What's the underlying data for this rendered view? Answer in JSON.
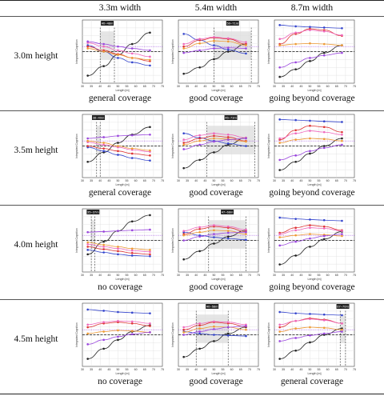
{
  "columns": [
    "3.3m width",
    "5.4m width",
    "8.7m width"
  ],
  "rows": [
    "3.0m height",
    "3.5m height",
    "4.0m height",
    "4.5m height"
  ],
  "axes": {
    "xlabel": "Length [m]",
    "ylabel": "Integrated Cognition",
    "xticks": [
      30,
      35,
      40,
      45,
      50,
      55,
      60,
      65,
      70,
      75
    ]
  },
  "colors": {
    "black": "#222222",
    "blue": "#3344cc",
    "red": "#dd3333",
    "pink": "#ee66bb",
    "orange": "#ee9933",
    "purple": "#9944dd",
    "shade": "#dcdcdc"
  },
  "chart_data": [
    {
      "type": "line",
      "row": "3.0m height",
      "col": "3.3m width",
      "caption": "general coverage",
      "range": [
        40,
        48
      ],
      "range_label": "40~48m",
      "series": [
        {
          "color": "black",
          "y": [
            0.12,
            0.27,
            0.45,
            0.62,
            0.8
          ]
        },
        {
          "color": "blue",
          "y": [
            0.6,
            0.5,
            0.4,
            0.33,
            0.28
          ]
        },
        {
          "color": "red",
          "y": [
            0.58,
            0.52,
            0.46,
            0.4,
            0.35
          ]
        },
        {
          "color": "pink",
          "y": [
            0.64,
            0.58,
            0.52,
            0.47,
            0.42
          ]
        },
        {
          "color": "orange",
          "y": [
            0.55,
            0.5,
            0.45,
            0.4,
            0.37
          ]
        },
        {
          "color": "purple",
          "y": [
            0.66,
            0.62,
            0.58,
            0.55,
            0.52
          ]
        }
      ]
    },
    {
      "type": "line",
      "row": "3.0m height",
      "col": "5.4m width",
      "caption": "good coverage",
      "range": [
        50,
        71
      ],
      "range_label": "50~71m",
      "series": [
        {
          "color": "black",
          "y": [
            0.15,
            0.25,
            0.38,
            0.5,
            0.62
          ]
        },
        {
          "color": "blue",
          "y": [
            0.78,
            0.68,
            0.6,
            0.53,
            0.47
          ]
        },
        {
          "color": "red",
          "y": [
            0.58,
            0.68,
            0.72,
            0.7,
            0.62
          ]
        },
        {
          "color": "pink",
          "y": [
            0.62,
            0.7,
            0.73,
            0.71,
            0.65
          ]
        },
        {
          "color": "orange",
          "y": [
            0.55,
            0.63,
            0.67,
            0.66,
            0.6
          ]
        },
        {
          "color": "purple",
          "y": [
            0.48,
            0.52,
            0.55,
            0.56,
            0.55
          ]
        }
      ]
    },
    {
      "type": "line",
      "row": "3.0m height",
      "col": "8.7m width",
      "caption": "going beyond coverage",
      "range": null,
      "range_label": "",
      "series": [
        {
          "color": "black",
          "y": [
            0.1,
            0.22,
            0.35,
            0.48,
            0.6
          ]
        },
        {
          "color": "blue",
          "y": [
            0.92,
            0.9,
            0.89,
            0.88,
            0.87
          ]
        },
        {
          "color": "red",
          "y": [
            0.62,
            0.78,
            0.86,
            0.84,
            0.75
          ]
        },
        {
          "color": "pink",
          "y": [
            0.7,
            0.8,
            0.84,
            0.82,
            0.76
          ]
        },
        {
          "color": "orange",
          "y": [
            0.6,
            0.62,
            0.63,
            0.62,
            0.6
          ]
        },
        {
          "color": "purple",
          "y": [
            0.25,
            0.33,
            0.4,
            0.44,
            0.48
          ]
        }
      ]
    },
    {
      "type": "line",
      "row": "3.5m height",
      "col": "3.3m width",
      "caption": "general coverage",
      "range": [
        38,
        40
      ],
      "range_label": "38~40m",
      "series": [
        {
          "color": "black",
          "y": [
            0.25,
            0.4,
            0.55,
            0.68,
            0.8
          ]
        },
        {
          "color": "blue",
          "y": [
            0.48,
            0.42,
            0.36,
            0.31,
            0.27
          ]
        },
        {
          "color": "red",
          "y": [
            0.5,
            0.46,
            0.42,
            0.38,
            0.35
          ]
        },
        {
          "color": "pink",
          "y": [
            0.56,
            0.52,
            0.48,
            0.44,
            0.41
          ]
        },
        {
          "color": "orange",
          "y": [
            0.58,
            0.55,
            0.5,
            0.46,
            0.43
          ]
        },
        {
          "color": "purple",
          "y": [
            0.62,
            0.64,
            0.66,
            0.67,
            0.68
          ]
        }
      ]
    },
    {
      "type": "line",
      "row": "3.5m height",
      "col": "5.4m width",
      "caption": "good coverage",
      "range": [
        46,
        73
      ],
      "range_label": "46~73m",
      "series": [
        {
          "color": "black",
          "y": [
            0.15,
            0.28,
            0.4,
            0.52,
            0.63
          ]
        },
        {
          "color": "blue",
          "y": [
            0.7,
            0.63,
            0.58,
            0.54,
            0.5
          ]
        },
        {
          "color": "red",
          "y": [
            0.55,
            0.62,
            0.66,
            0.64,
            0.58
          ]
        },
        {
          "color": "pink",
          "y": [
            0.6,
            0.67,
            0.7,
            0.68,
            0.63
          ]
        },
        {
          "color": "orange",
          "y": [
            0.52,
            0.58,
            0.62,
            0.61,
            0.57
          ]
        },
        {
          "color": "purple",
          "y": [
            0.45,
            0.52,
            0.57,
            0.6,
            0.62
          ]
        }
      ]
    },
    {
      "type": "line",
      "row": "3.5m height",
      "col": "8.7m width",
      "caption": "going beyond coverage",
      "range": null,
      "range_label": "",
      "series": [
        {
          "color": "black",
          "y": [
            0.12,
            0.25,
            0.38,
            0.5,
            0.62
          ]
        },
        {
          "color": "blue",
          "y": [
            0.92,
            0.91,
            0.9,
            0.89,
            0.88
          ]
        },
        {
          "color": "red",
          "y": [
            0.6,
            0.75,
            0.82,
            0.8,
            0.72
          ]
        },
        {
          "color": "pink",
          "y": [
            0.62,
            0.7,
            0.74,
            0.72,
            0.68
          ]
        },
        {
          "color": "orange",
          "y": [
            0.55,
            0.6,
            0.62,
            0.61,
            0.58
          ]
        },
        {
          "color": "purple",
          "y": [
            0.28,
            0.35,
            0.42,
            0.47,
            0.52
          ]
        }
      ]
    },
    {
      "type": "line",
      "row": "4.0m height",
      "col": "3.3m width",
      "caption": "no coverage",
      "range": [
        35,
        37
      ],
      "range_label": "35~37m",
      "series": [
        {
          "color": "black",
          "y": [
            0.28,
            0.48,
            0.65,
            0.8,
            0.9
          ]
        },
        {
          "color": "blue",
          "y": [
            0.35,
            0.31,
            0.28,
            0.26,
            0.25
          ]
        },
        {
          "color": "red",
          "y": [
            0.4,
            0.36,
            0.33,
            0.3,
            0.28
          ]
        },
        {
          "color": "pink",
          "y": [
            0.44,
            0.4,
            0.37,
            0.34,
            0.32
          ]
        },
        {
          "color": "orange",
          "y": [
            0.47,
            0.43,
            0.4,
            0.37,
            0.35
          ]
        },
        {
          "color": "purple",
          "y": [
            0.63,
            0.64,
            0.65,
            0.66,
            0.67
          ]
        }
      ]
    },
    {
      "type": "line",
      "row": "4.0m height",
      "col": "5.4m width",
      "caption": "good coverage",
      "range": [
        47,
        68
      ],
      "range_label": "47~68m",
      "series": [
        {
          "color": "black",
          "y": [
            0.2,
            0.33,
            0.45,
            0.56,
            0.66
          ]
        },
        {
          "color": "blue",
          "y": [
            0.63,
            0.58,
            0.55,
            0.53,
            0.51
          ]
        },
        {
          "color": "red",
          "y": [
            0.6,
            0.68,
            0.72,
            0.7,
            0.64
          ]
        },
        {
          "color": "pink",
          "y": [
            0.65,
            0.71,
            0.74,
            0.72,
            0.67
          ]
        },
        {
          "color": "orange",
          "y": [
            0.58,
            0.63,
            0.66,
            0.65,
            0.6
          ]
        },
        {
          "color": "purple",
          "y": [
            0.5,
            0.56,
            0.6,
            0.62,
            0.63
          ]
        }
      ]
    },
    {
      "type": "line",
      "row": "4.0m height",
      "col": "8.7m width",
      "caption": "going beyond coverage",
      "range": null,
      "range_label": "",
      "series": [
        {
          "color": "black",
          "y": [
            0.12,
            0.26,
            0.4,
            0.52,
            0.64
          ]
        },
        {
          "color": "blue",
          "y": [
            0.86,
            0.84,
            0.83,
            0.82,
            0.81
          ]
        },
        {
          "color": "red",
          "y": [
            0.62,
            0.7,
            0.74,
            0.72,
            0.66
          ]
        },
        {
          "color": "pink",
          "y": [
            0.6,
            0.66,
            0.7,
            0.69,
            0.65
          ]
        },
        {
          "color": "orange",
          "y": [
            0.55,
            0.58,
            0.6,
            0.59,
            0.57
          ]
        },
        {
          "color": "purple",
          "y": [
            0.42,
            0.48,
            0.53,
            0.57,
            0.6
          ]
        }
      ]
    },
    {
      "type": "line",
      "row": "4.5m height",
      "col": "3.3m width",
      "caption": "no coverage",
      "range": null,
      "range_label": "",
      "series": [
        {
          "color": "black",
          "y": [
            0.12,
            0.28,
            0.42,
            0.55,
            0.65
          ]
        },
        {
          "color": "blue",
          "y": [
            0.9,
            0.88,
            0.86,
            0.85,
            0.84
          ]
        },
        {
          "color": "red",
          "y": [
            0.62,
            0.68,
            0.7,
            0.68,
            0.64
          ]
        },
        {
          "color": "pink",
          "y": [
            0.66,
            0.7,
            0.72,
            0.71,
            0.68
          ]
        },
        {
          "color": "orange",
          "y": [
            0.52,
            0.55,
            0.57,
            0.56,
            0.54
          ]
        },
        {
          "color": "purple",
          "y": [
            0.35,
            0.42,
            0.47,
            0.51,
            0.54
          ]
        }
      ]
    },
    {
      "type": "line",
      "row": "4.5m height",
      "col": "5.4m width",
      "caption": "good coverage",
      "range": [
        40,
        58
      ],
      "range_label": "40~58m",
      "series": [
        {
          "color": "black",
          "y": [
            0.15,
            0.28,
            0.4,
            0.52,
            0.62
          ]
        },
        {
          "color": "blue",
          "y": [
            0.55,
            0.52,
            0.5,
            0.49,
            0.48
          ]
        },
        {
          "color": "red",
          "y": [
            0.58,
            0.65,
            0.7,
            0.68,
            0.63
          ]
        },
        {
          "color": "pink",
          "y": [
            0.62,
            0.68,
            0.71,
            0.7,
            0.66
          ]
        },
        {
          "color": "orange",
          "y": [
            0.54,
            0.6,
            0.63,
            0.62,
            0.58
          ]
        },
        {
          "color": "purple",
          "y": [
            0.5,
            0.55,
            0.59,
            0.62,
            0.64
          ]
        }
      ]
    },
    {
      "type": "line",
      "row": "4.5m height",
      "col": "8.7m width",
      "caption": "general coverage",
      "range": [
        67,
        70
      ],
      "range_label": "67~70m",
      "series": [
        {
          "color": "black",
          "y": [
            0.12,
            0.25,
            0.38,
            0.5,
            0.6
          ]
        },
        {
          "color": "blue",
          "y": [
            0.86,
            0.84,
            0.83,
            0.82,
            0.81
          ]
        },
        {
          "color": "red",
          "y": [
            0.62,
            0.72,
            0.76,
            0.74,
            0.68
          ]
        },
        {
          "color": "pink",
          "y": [
            0.66,
            0.72,
            0.75,
            0.73,
            0.68
          ]
        },
        {
          "color": "orange",
          "y": [
            0.55,
            0.6,
            0.62,
            0.61,
            0.58
          ]
        },
        {
          "color": "purple",
          "y": [
            0.4,
            0.45,
            0.49,
            0.52,
            0.55
          ]
        }
      ]
    }
  ]
}
